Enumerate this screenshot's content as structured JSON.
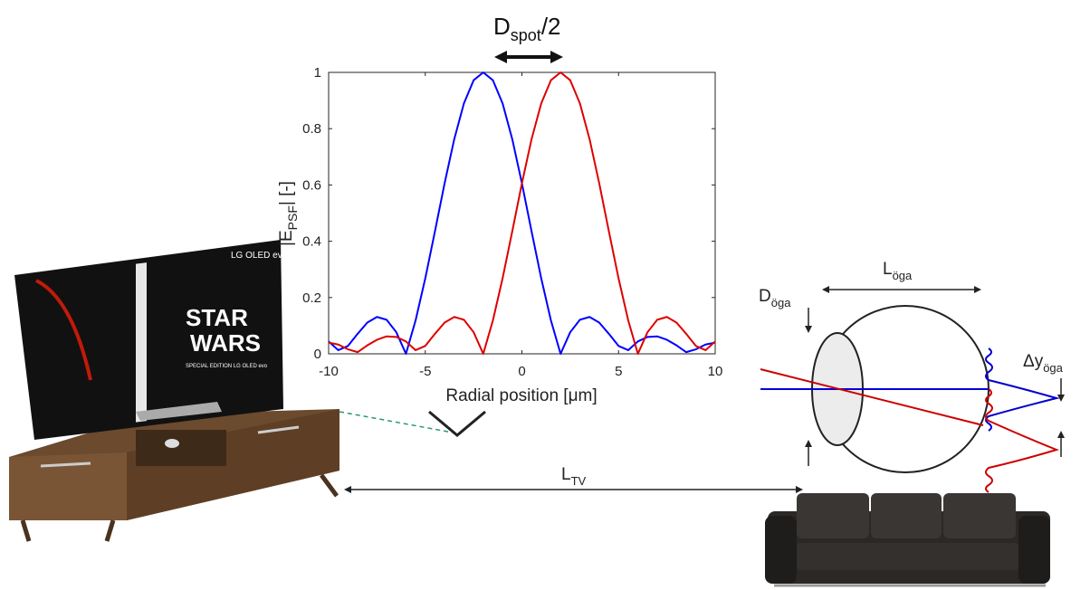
{
  "chart_data": {
    "type": "line",
    "title": {
      "base": "D",
      "sub": "spot",
      "rest": "/2"
    },
    "x_label": "Radial position [μm]",
    "y_label": {
      "base": "|E",
      "sub": "PSF",
      "rest": "| [-]"
    },
    "x": [
      -10,
      -9.5,
      -9,
      -8.5,
      -8,
      -7.5,
      -7,
      -6.5,
      -6,
      -5.5,
      -5,
      -4.5,
      -4,
      -3.5,
      -3,
      -2.5,
      -2,
      -1.5,
      -1,
      -0.5,
      0,
      0.5,
      1,
      1.5,
      2,
      2.5,
      3,
      3.5,
      4,
      4.5,
      5,
      5.5,
      6,
      6.5,
      7,
      7.5,
      8,
      8.5,
      9,
      9.5,
      10
    ],
    "series": [
      {
        "color": "#0000ff",
        "values": [
          0.044,
          0.013,
          0.028,
          0.071,
          0.111,
          0.131,
          0.121,
          0.077,
          0,
          0.119,
          0.268,
          0.435,
          0.606,
          0.763,
          0.89,
          0.972,
          1,
          0.972,
          0.89,
          0.763,
          0.606,
          0.435,
          0.268,
          0.119,
          0,
          0.077,
          0.121,
          0.131,
          0.111,
          0.071,
          0.028,
          0.013,
          0.044,
          0.06,
          0.062,
          0.05,
          0.03,
          0.006,
          0.016,
          0.033,
          0.04
        ]
      },
      {
        "color": "#dd0000",
        "values": [
          0.04,
          0.033,
          0.016,
          0.006,
          0.03,
          0.05,
          0.062,
          0.06,
          0.044,
          0.013,
          0.028,
          0.071,
          0.111,
          0.131,
          0.121,
          0.077,
          0,
          0.119,
          0.268,
          0.435,
          0.606,
          0.763,
          0.89,
          0.972,
          1,
          0.972,
          0.89,
          0.763,
          0.606,
          0.435,
          0.268,
          0.119,
          0,
          0.077,
          0.121,
          0.131,
          0.111,
          0.071,
          0.028,
          0.013,
          0.044
        ]
      }
    ],
    "xlim": [
      -10,
      10
    ],
    "ylim": [
      0,
      1
    ],
    "xticks": [
      -10,
      -5,
      0,
      5,
      10
    ],
    "yticks": [
      0,
      0.2,
      0.4,
      0.6,
      0.8,
      1
    ]
  },
  "diagram": {
    "eye_length": {
      "base": "L",
      "sub": "öga"
    },
    "eye_diameter": {
      "base": "D",
      "sub": "öga"
    },
    "eye_shift": {
      "base": "Δy",
      "sub": "öga"
    },
    "tv_distance": {
      "base": "L",
      "sub": "TV"
    },
    "tv_brand": "LG OLED evo",
    "tv_logo": [
      "STAR",
      "WARS"
    ],
    "tv_caption": "SPECIAL EDITION LG OLED evo"
  }
}
